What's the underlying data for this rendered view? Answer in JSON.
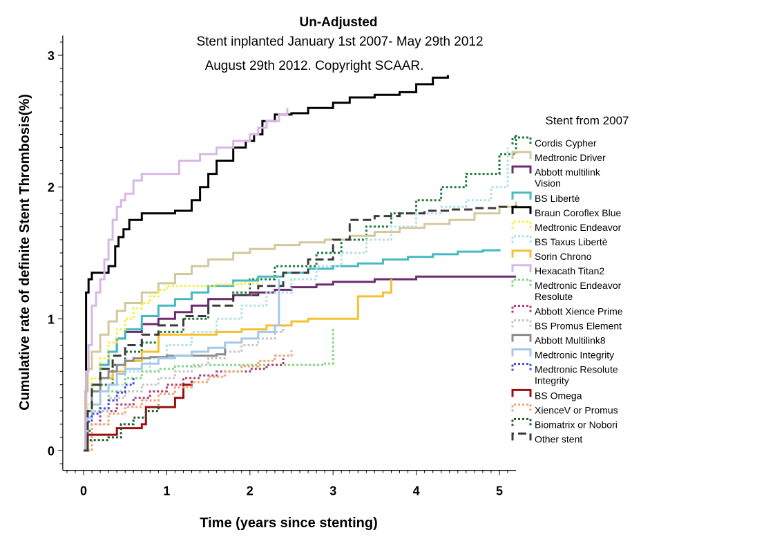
{
  "chart_data": {
    "type": "line",
    "title": "Un-Adjusted",
    "subtitle_lines": [
      "Stent inplanted January 1st 2007- May 29th 2012",
      "August 29th 2012. Copyright SCAAR."
    ],
    "xlabel": "Time (years since stenting)",
    "ylabel": "Cumulative rate of definite Stent Thrombosis(%)",
    "xlim": [
      -0.25,
      5.2
    ],
    "ylim": [
      -0.15,
      3.15
    ],
    "x_ticks": [
      "0",
      "1",
      "2",
      "3",
      "4",
      "5"
    ],
    "y_ticks": [
      "0",
      "1",
      "2",
      "3"
    ],
    "legend_title": "Stent from 2007",
    "legend_position": "right",
    "grid": false,
    "series": [
      {
        "name": "Cordis Cypher",
        "color": "#1a7a3a",
        "dash": "dot",
        "x": [
          0,
          0.05,
          0.1,
          0.2,
          0.35,
          0.5,
          0.7,
          0.9,
          1.2,
          1.5,
          1.8,
          2.0,
          2.3,
          2.8,
          3.1,
          3.4,
          3.7,
          4.0,
          4.3,
          4.6,
          5.0,
          5.2
        ],
        "y": [
          0,
          0.15,
          0.3,
          0.5,
          0.65,
          0.75,
          0.82,
          0.9,
          1.0,
          1.15,
          1.2,
          1.3,
          1.4,
          1.5,
          1.6,
          1.7,
          1.8,
          1.9,
          2.0,
          2.1,
          2.25,
          2.4
        ]
      },
      {
        "name": "Medtronic Driver",
        "color": "#d3c89b",
        "dash": "solid",
        "x": [
          0,
          0.02,
          0.05,
          0.1,
          0.2,
          0.3,
          0.4,
          0.5,
          0.7,
          0.9,
          1.1,
          1.3,
          1.5,
          1.8,
          2.0,
          2.3,
          2.6,
          2.9,
          3.2,
          3.5,
          3.8,
          4.1,
          4.4,
          4.7,
          5.0,
          5.2
        ],
        "y": [
          0,
          0.45,
          0.62,
          0.75,
          0.88,
          0.98,
          1.06,
          1.12,
          1.2,
          1.27,
          1.34,
          1.4,
          1.45,
          1.5,
          1.53,
          1.56,
          1.58,
          1.6,
          1.63,
          1.66,
          1.69,
          1.72,
          1.75,
          1.8,
          1.85,
          1.89
        ]
      },
      {
        "name": "Abbott multilink Vision",
        "color": "#6e2a6e",
        "dash": "solid",
        "x": [
          0,
          0.05,
          0.1,
          0.2,
          0.3,
          0.4,
          0.5,
          0.7,
          0.9,
          1.1,
          1.3,
          1.5,
          1.8,
          2.0,
          2.3,
          2.5,
          2.8,
          3.0,
          3.5,
          4.0,
          4.5,
          5.0,
          5.2
        ],
        "y": [
          0,
          0.3,
          0.5,
          0.65,
          0.75,
          0.85,
          0.9,
          0.96,
          1.0,
          1.05,
          1.1,
          1.15,
          1.18,
          1.2,
          1.22,
          1.24,
          1.26,
          1.28,
          1.3,
          1.32,
          1.32,
          1.32,
          1.32
        ]
      },
      {
        "name": "BS Libertè",
        "color": "#46b8c0",
        "dash": "solid",
        "x": [
          0,
          0.05,
          0.1,
          0.2,
          0.3,
          0.4,
          0.5,
          0.7,
          0.9,
          1.1,
          1.3,
          1.5,
          1.8,
          2.1,
          2.4,
          2.7,
          3.0,
          3.3,
          3.6,
          3.9,
          4.2,
          4.5,
          4.8,
          5.0
        ],
        "y": [
          0,
          0.3,
          0.5,
          0.65,
          0.75,
          0.85,
          0.92,
          1.02,
          1.1,
          1.15,
          1.2,
          1.25,
          1.29,
          1.32,
          1.35,
          1.38,
          1.4,
          1.42,
          1.45,
          1.47,
          1.49,
          1.51,
          1.52,
          1.53
        ]
      },
      {
        "name": "Braun Coroflex Blue",
        "color": "#000000",
        "dash": "solid",
        "x": [
          0,
          0.03,
          0.06,
          0.1,
          0.2,
          0.3,
          0.38,
          0.42,
          0.48,
          0.55,
          0.7,
          0.9,
          1.1,
          1.3,
          1.4,
          1.5,
          1.6,
          1.8,
          1.95,
          2.05,
          2.15,
          2.3,
          2.5,
          2.7,
          3.0,
          3.2,
          3.5,
          3.8,
          4.0,
          4.2,
          4.38
        ],
        "y": [
          0,
          1.2,
          1.3,
          1.35,
          1.35,
          1.4,
          1.55,
          1.62,
          1.68,
          1.75,
          1.8,
          1.8,
          1.82,
          1.9,
          2.0,
          2.1,
          2.2,
          2.3,
          2.35,
          2.4,
          2.5,
          2.55,
          2.56,
          2.6,
          2.64,
          2.68,
          2.7,
          2.72,
          2.78,
          2.83,
          2.85
        ]
      },
      {
        "name": "Medtronic Endeavor",
        "color": "#f5f03c",
        "dash": "dot",
        "x": [
          0,
          0.05,
          0.1,
          0.2,
          0.3,
          0.4,
          0.5,
          0.6,
          0.7,
          0.8,
          0.9,
          1.0,
          1.3,
          1.6,
          1.9,
          2.1
        ],
        "y": [
          0,
          0.35,
          0.55,
          0.7,
          0.82,
          0.92,
          1.0,
          1.08,
          1.12,
          1.17,
          1.22,
          1.25,
          1.25,
          1.26,
          1.27,
          1.28
        ]
      },
      {
        "name": "BS Taxus Libertè",
        "color": "#aee0e4",
        "dash": "dot",
        "x": [
          0,
          0.1,
          0.3,
          0.5,
          0.8,
          1.0,
          1.3,
          1.6,
          1.9,
          2.2,
          2.5,
          2.8,
          3.1,
          3.4,
          3.7,
          4.0,
          4.3,
          4.6,
          4.9,
          5.1
        ],
        "y": [
          0,
          0.3,
          0.5,
          0.6,
          0.7,
          0.8,
          0.9,
          1.0,
          1.1,
          1.2,
          1.3,
          1.4,
          1.5,
          1.6,
          1.7,
          1.8,
          1.85,
          1.9,
          2.0,
          2.3
        ]
      },
      {
        "name": "Sorin Chrono",
        "color": "#f5c030",
        "dash": "solid",
        "x": [
          0,
          0.05,
          0.1,
          0.2,
          0.35,
          0.5,
          0.7,
          0.9,
          1.1,
          1.3,
          1.6,
          1.9,
          2.2,
          2.5,
          2.7,
          3.0,
          3.3,
          3.6,
          3.7
        ],
        "y": [
          0,
          0.3,
          0.45,
          0.55,
          0.6,
          0.68,
          0.75,
          0.88,
          0.88,
          0.88,
          0.9,
          0.92,
          0.95,
          0.98,
          1.0,
          1.0,
          1.17,
          1.2,
          1.3
        ]
      },
      {
        "name": "Hexacath Titan2",
        "color": "#d8b7e8",
        "dash": "solid",
        "x": [
          0,
          0.03,
          0.06,
          0.1,
          0.15,
          0.2,
          0.25,
          0.3,
          0.35,
          0.4,
          0.45,
          0.5,
          0.6,
          0.7,
          0.9,
          1.15,
          1.4,
          1.6,
          1.8,
          2.0,
          2.1,
          2.2,
          2.35,
          2.45
        ],
        "y": [
          0,
          0.6,
          0.8,
          1.1,
          1.2,
          1.3,
          1.45,
          1.6,
          1.75,
          1.85,
          1.9,
          1.95,
          2.05,
          2.1,
          2.1,
          2.2,
          2.25,
          2.3,
          2.35,
          2.4,
          2.45,
          2.5,
          2.55,
          2.6
        ]
      },
      {
        "name": "Medtronic Endeavor Resolute",
        "color": "#7ed67e",
        "dash": "dot",
        "x": [
          0,
          0.1,
          0.3,
          0.5,
          0.7,
          0.9,
          1.1,
          1.4,
          1.7,
          2.0,
          2.3,
          2.6,
          2.9,
          3.0
        ],
        "y": [
          0,
          0.3,
          0.45,
          0.55,
          0.6,
          0.62,
          0.64,
          0.65,
          0.65,
          0.65,
          0.65,
          0.65,
          0.66,
          0.93
        ]
      },
      {
        "name": "Abbott Xience Prime",
        "color": "#b03a70",
        "dash": "dot",
        "x": [
          0,
          0.1,
          0.2,
          0.4,
          0.6,
          0.8,
          1.0,
          1.2,
          1.4,
          1.6,
          1.8,
          2.0,
          2.2,
          2.4
        ],
        "y": [
          0,
          0.2,
          0.3,
          0.35,
          0.4,
          0.45,
          0.5,
          0.55,
          0.57,
          0.6,
          0.6,
          0.62,
          0.65,
          0.7
        ]
      },
      {
        "name": "BS Promus Element",
        "color": "#c4c4c4",
        "dash": "dot",
        "x": [
          0,
          0.1,
          0.3,
          0.5,
          0.7,
          0.9,
          1.1,
          1.3,
          1.5,
          1.7,
          1.9,
          2.1,
          2.3,
          2.4
        ],
        "y": [
          0,
          0.3,
          0.4,
          0.45,
          0.5,
          0.55,
          0.6,
          0.65,
          0.7,
          0.75,
          0.8,
          0.85,
          0.9,
          0.95
        ]
      },
      {
        "name": "Abbott Multilink8",
        "color": "#8c8c8c",
        "dash": "solid",
        "x": [
          0,
          0.05,
          0.1,
          0.2,
          0.3,
          0.4,
          0.5,
          0.6,
          0.8,
          1.0,
          1.2,
          1.4,
          1.6,
          1.7
        ],
        "y": [
          0,
          0.3,
          0.45,
          0.55,
          0.6,
          0.65,
          0.68,
          0.7,
          0.71,
          0.72,
          0.72,
          0.72,
          0.73,
          0.78
        ]
      },
      {
        "name": "Medtronic Integrity",
        "color": "#a4c8e8",
        "dash": "solid",
        "x": [
          0,
          0.05,
          0.1,
          0.2,
          0.3,
          0.4,
          0.5,
          0.7,
          0.9,
          1.1,
          1.3,
          1.5,
          1.7,
          1.9,
          2.1,
          2.3,
          2.35
        ],
        "y": [
          0,
          0.25,
          0.35,
          0.45,
          0.5,
          0.58,
          0.62,
          0.66,
          0.7,
          0.72,
          0.75,
          0.78,
          0.82,
          0.85,
          0.9,
          0.95,
          1.3
        ]
      },
      {
        "name": "Medtronic Resolute Integrity",
        "color": "#4a4ae0",
        "dash": "dot",
        "x": [
          0,
          0.05,
          0.1,
          0.2,
          0.3,
          0.4,
          0.5,
          0.6
        ],
        "y": [
          0,
          0.22,
          0.28,
          0.32,
          0.38,
          0.44,
          0.5,
          0.55
        ]
      },
      {
        "name": "BS Omega",
        "color": "#9a0e0e",
        "dash": "solid",
        "x": [
          0,
          0.05,
          0.15,
          0.3,
          0.4,
          0.55,
          0.7,
          0.75,
          0.9,
          1.1,
          1.2,
          1.3
        ],
        "y": [
          0,
          0.12,
          0.12,
          0.12,
          0.17,
          0.17,
          0.2,
          0.33,
          0.33,
          0.4,
          0.5,
          0.53
        ]
      },
      {
        "name": "XienceV or Promus",
        "color": "#f4a070",
        "dash": "dot",
        "x": [
          0,
          0.1,
          0.3,
          0.5,
          0.7,
          0.9,
          1.1,
          1.3,
          1.5,
          1.7,
          1.9,
          2.1,
          2.3,
          2.5
        ],
        "y": [
          0,
          0.2,
          0.28,
          0.33,
          0.38,
          0.43,
          0.48,
          0.52,
          0.56,
          0.6,
          0.64,
          0.68,
          0.72,
          0.76
        ]
      },
      {
        "name": "Biomatrix or Nobori",
        "color": "#1d5a2a",
        "dash": "dot",
        "x": [
          0,
          0.05,
          0.15,
          0.3,
          0.45,
          0.6,
          0.75,
          0.9
        ],
        "y": [
          0,
          0.08,
          0.08,
          0.1,
          0.2,
          0.25,
          0.3,
          0.35
        ]
      },
      {
        "name": "Other stent",
        "color": "#3a3a3a",
        "dash": "dash",
        "x": [
          0,
          0.05,
          0.1,
          0.2,
          0.35,
          0.5,
          0.7,
          0.9,
          1.2,
          1.5,
          1.8,
          2.1,
          2.4,
          2.7,
          3.0,
          3.2,
          3.5,
          3.8,
          4.1,
          4.4,
          4.7,
          5.0,
          5.2
        ],
        "y": [
          0,
          0.3,
          0.5,
          0.62,
          0.72,
          0.8,
          0.88,
          0.95,
          1.02,
          1.1,
          1.18,
          1.25,
          1.35,
          1.45,
          1.6,
          1.75,
          1.78,
          1.8,
          1.82,
          1.83,
          1.84,
          1.85,
          1.86
        ]
      }
    ]
  }
}
